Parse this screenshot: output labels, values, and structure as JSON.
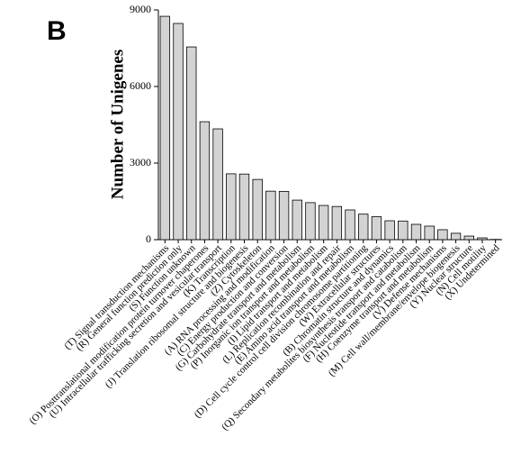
{
  "chart_data": {
    "type": "bar",
    "panel_label": "B",
    "ylabel": "Number of Unigenes",
    "categories": [
      "(T) Signal transduction mechanisms",
      "(R) General function prediction only",
      "(S) Function unknown",
      "(O) Posttranslational modification protein turnover chaperones",
      "(U) Intracellular trafficking secretion and vesicular transport",
      "(K) Transcription",
      "(J) Translation ribosomal structure and biogenesis",
      "(Z) Cytoskeleton",
      "(A) RNA processing and modification",
      "(C) Energy production and conversion",
      "(G) Carbohydrate transport and metabolism",
      "(P) Inorganic ion transport and metabolism",
      "(I) Lipid transport and metabolism",
      "(L) Replication recombination and repair",
      "(E) Amino acid transport and metabolism",
      "(D) Cell cycle control cell division chromosome partitioning",
      "(W) Extracellular structures",
      "(B) Chromatin structure and dynamics",
      "(Q) Secondary metabolites biosynthesis transport and catabolism",
      "(F) Nucleotide transport and metabolism",
      "(H) Coenzyme transport and metabolism",
      "(V) Defense mechanisms",
      "(M) Cell wall/membrane/envelope biogenesis",
      "(Y) Nuclear structure",
      "(N) Cell motility",
      "(X) Undetermined"
    ],
    "values": [
      8750,
      8470,
      7550,
      4620,
      4340,
      2580,
      2570,
      2360,
      1900,
      1890,
      1550,
      1450,
      1340,
      1300,
      1165,
      1000,
      900,
      740,
      730,
      600,
      530,
      390,
      250,
      140,
      70,
      10
    ],
    "color": "#d3d3d3",
    "ylim": [
      0,
      9000
    ],
    "yticks": [
      0,
      3000,
      6000,
      9000
    ]
  }
}
